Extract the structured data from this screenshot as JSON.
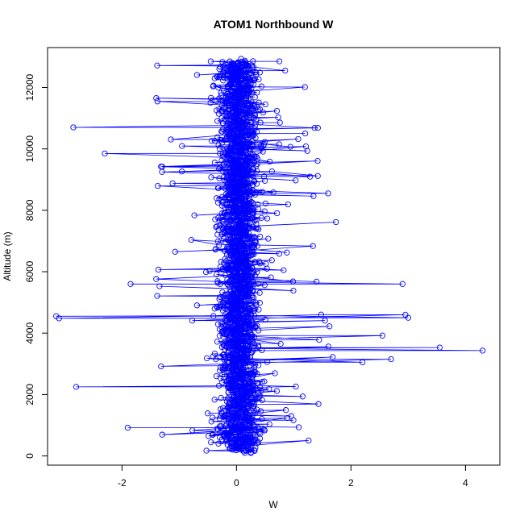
{
  "chart_data": {
    "type": "scatter",
    "title": "ATOM1 Northbound W",
    "xlabel": "W",
    "ylabel": "Altitude (m)",
    "xlim": [
      -3.3,
      4.6
    ],
    "ylim": [
      -300,
      13300
    ],
    "x_ticks": [
      -2,
      0,
      2,
      4
    ],
    "y_ticks": [
      0,
      2000,
      4000,
      6000,
      8000,
      10000,
      12000
    ],
    "x_tick_labels": [
      "-2",
      "0",
      "2",
      "4"
    ],
    "y_tick_labels": [
      "0",
      "2000",
      "4000",
      "6000",
      "8000",
      "10000",
      "12000"
    ],
    "series_color": "#0000ff",
    "marker": "open-circle",
    "connected": true,
    "grid": false,
    "legend": "none",
    "y_range": [
      150,
      12850
    ],
    "core_spread": 0.45,
    "extreme_points": [
      {
        "x": -3.15,
        "y": 4550
      },
      {
        "x": -3.1,
        "y": 4480
      },
      {
        "x": -2.85,
        "y": 10700
      },
      {
        "x": -2.8,
        "y": 2250
      },
      {
        "x": -2.3,
        "y": 9850
      },
      {
        "x": -1.85,
        "y": 5600
      },
      {
        "x": -1.9,
        "y": 920
      },
      {
        "x": 1.6,
        "y": 8550
      },
      {
        "x": 1.2,
        "y": 10500
      },
      {
        "x": 2.9,
        "y": 5600
      },
      {
        "x": 2.95,
        "y": 4600
      },
      {
        "x": 3.0,
        "y": 4500
      },
      {
        "x": 3.55,
        "y": 3530
      },
      {
        "x": 4.3,
        "y": 3430
      },
      {
        "x": 2.7,
        "y": 3150
      },
      {
        "x": 2.55,
        "y": 3920
      },
      {
        "x": 2.2,
        "y": 3050
      },
      {
        "x": 0.85,
        "y": 12550
      },
      {
        "x": 0.75,
        "y": 12850
      },
      {
        "x": -0.45,
        "y": 12850
      }
    ]
  }
}
